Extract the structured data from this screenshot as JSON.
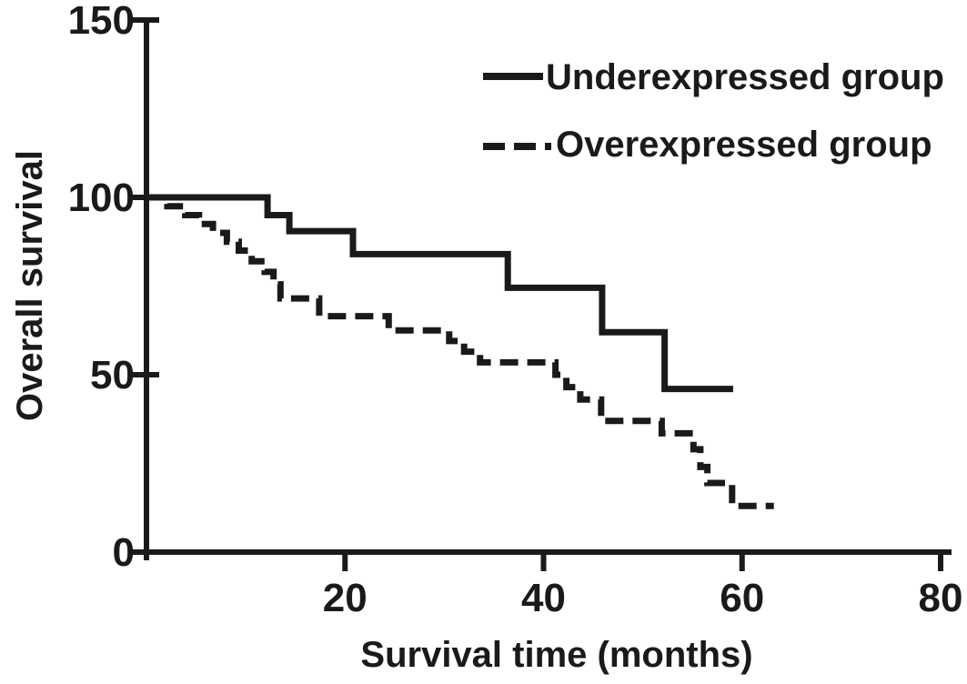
{
  "figure": {
    "background_color": "#ffffff",
    "ink_color": "#1a1a1a"
  },
  "chart_data": {
    "type": "line",
    "subtype": "kaplan-meier-step",
    "title": "",
    "xlabel": "Survival time (months)",
    "ylabel": "Overall survival",
    "xlim": [
      0,
      80
    ],
    "ylim": [
      0,
      150
    ],
    "x_ticks": [
      20,
      40,
      60,
      80
    ],
    "y_ticks": [
      0,
      50,
      100,
      150
    ],
    "grid": false,
    "legend_position": "top-right",
    "series": [
      {
        "name": "Underexpressed group",
        "line_style": "solid",
        "color": "#1a1a1a",
        "points": [
          [
            0,
            100
          ],
          [
            12.2,
            95
          ],
          [
            14.4,
            90.5
          ],
          [
            20.8,
            84
          ],
          [
            36.4,
            74.5
          ],
          [
            45.9,
            62
          ],
          [
            52.2,
            46
          ],
          [
            59.1,
            46
          ]
        ]
      },
      {
        "name": "Overexpressed group",
        "line_style": "dashed",
        "color": "#1a1a1a",
        "points": [
          [
            0,
            100
          ],
          [
            2.1,
            97.5
          ],
          [
            3.9,
            95
          ],
          [
            5.3,
            92.5
          ],
          [
            6.7,
            90
          ],
          [
            8.1,
            87.5
          ],
          [
            9.3,
            85
          ],
          [
            10.6,
            82
          ],
          [
            11.9,
            79
          ],
          [
            12.8,
            75.5
          ],
          [
            13.5,
            71.5
          ],
          [
            17.4,
            66.5
          ],
          [
            24.4,
            62.5
          ],
          [
            30.5,
            59.5
          ],
          [
            32.0,
            56.5
          ],
          [
            33.6,
            53.5
          ],
          [
            41.2,
            50
          ],
          [
            42.3,
            46.5
          ],
          [
            43.7,
            43
          ],
          [
            45.8,
            37
          ],
          [
            51.9,
            33.5
          ],
          [
            55.1,
            29
          ],
          [
            55.8,
            24
          ],
          [
            56.5,
            19.5
          ],
          [
            59.0,
            13
          ],
          [
            63.2,
            13
          ]
        ]
      }
    ]
  }
}
